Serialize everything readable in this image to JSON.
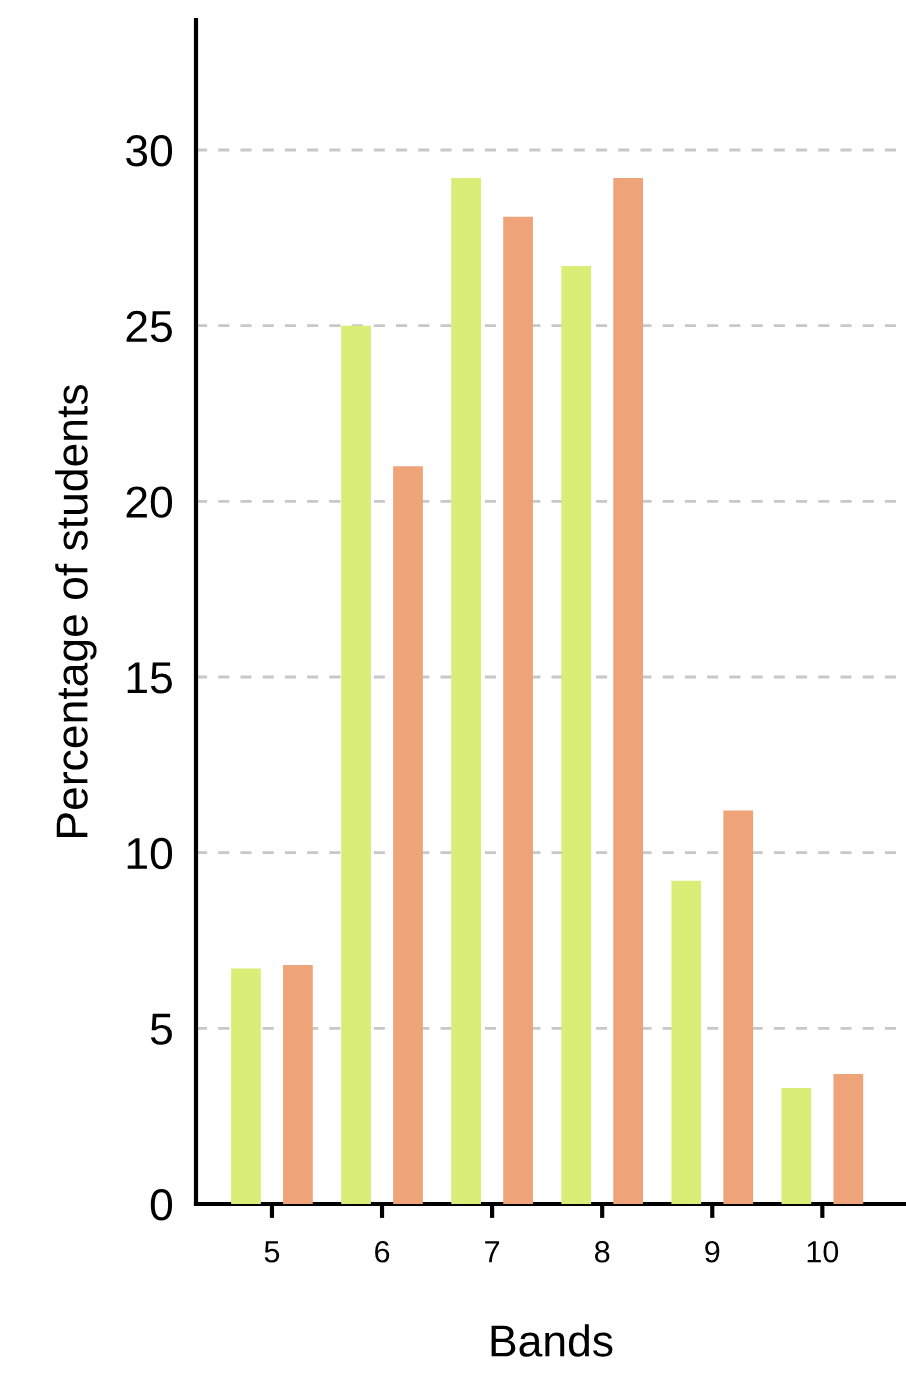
{
  "chart_data": {
    "type": "bar",
    "xlabel": "Bands",
    "ylabel": "Percentage of students",
    "categories": [
      "5",
      "6",
      "7",
      "8",
      "9",
      "10"
    ],
    "series": [
      {
        "color": "#d9ed77",
        "values": [
          6.7,
          25.0,
          29.2,
          26.7,
          9.2,
          3.3
        ]
      },
      {
        "color": "#efa378",
        "values": [
          6.8,
          21.0,
          28.1,
          29.2,
          11.2,
          3.7
        ]
      }
    ],
    "ylim": [
      0,
      33.7
    ],
    "yticks": [
      0,
      5,
      10,
      15,
      20,
      25,
      30
    ],
    "grid": "y",
    "legend": false
  }
}
